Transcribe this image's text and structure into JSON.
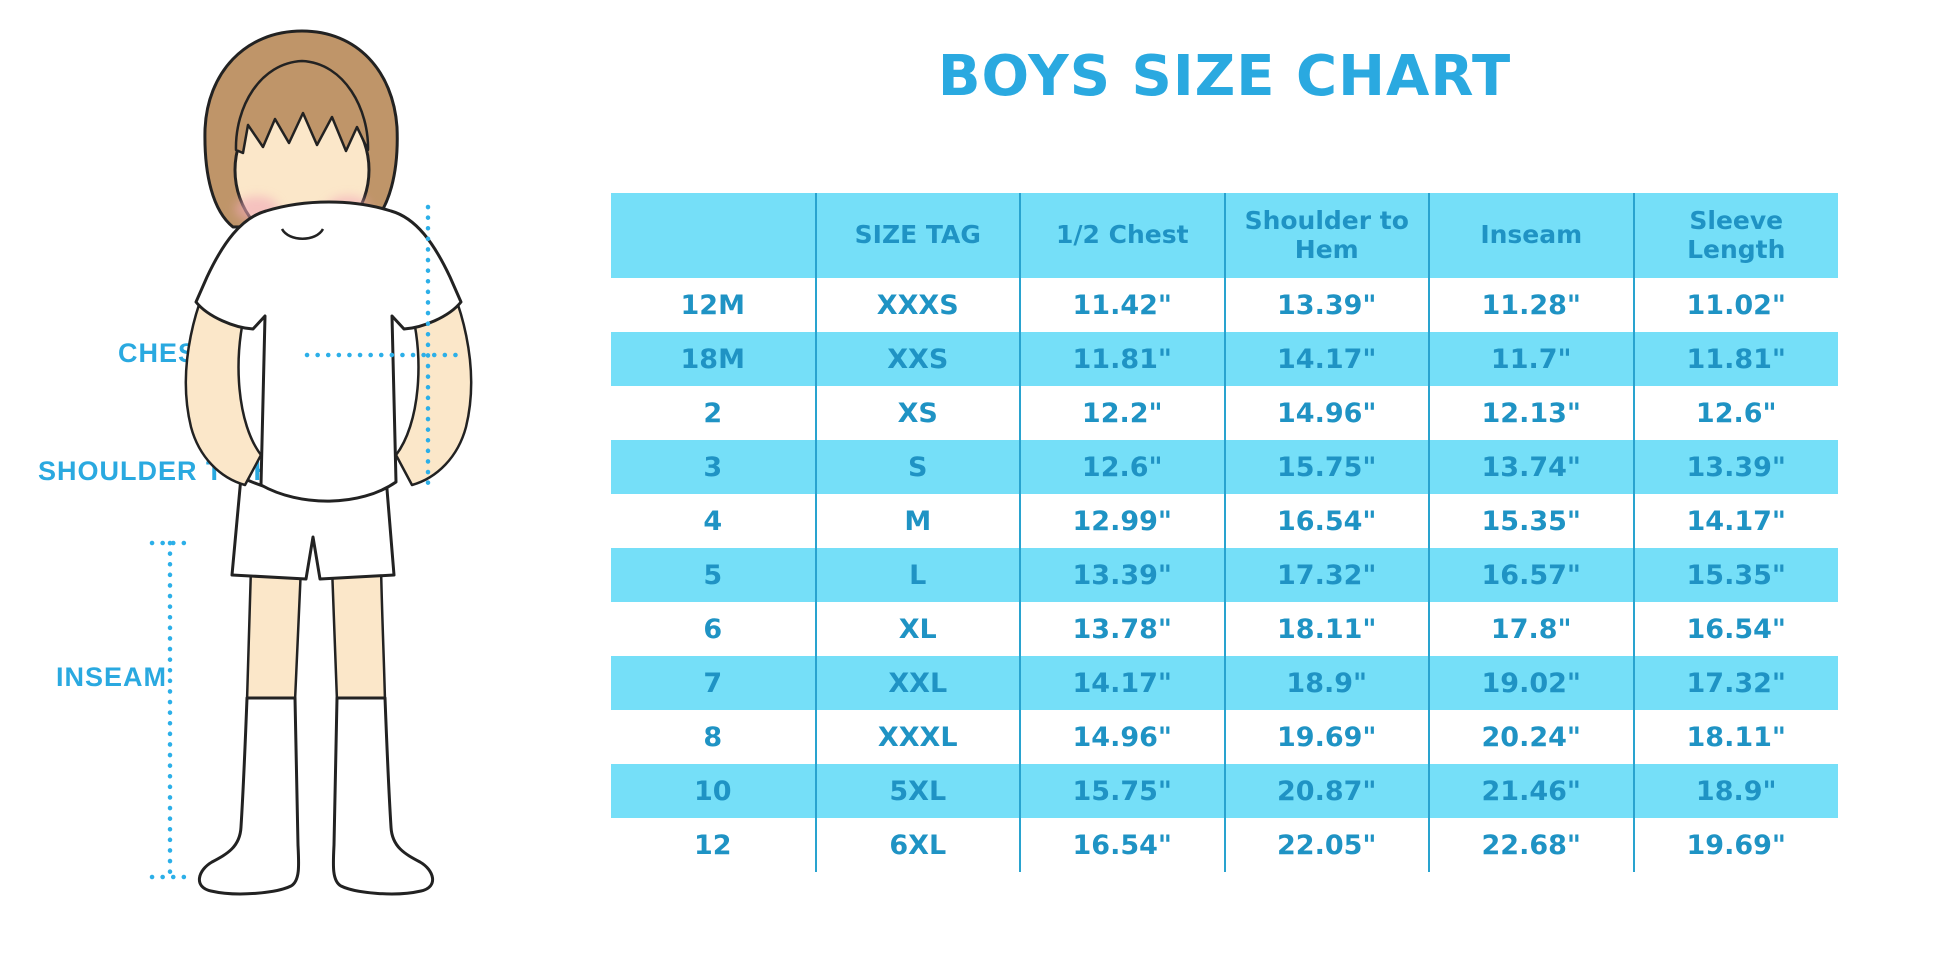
{
  "title": "BOYS SIZE CHART",
  "diagram": {
    "labels": {
      "chest": "CHEST",
      "shoulder_to_hem": "SHOULDER TO HEM",
      "inseam": "INSEAM"
    }
  },
  "chart_data": {
    "type": "table",
    "title": "BOYS SIZE CHART",
    "columns": [
      "",
      "SIZE TAG",
      "1/2 Chest",
      "Shoulder to Hem",
      "Inseam",
      "Sleeve Length"
    ],
    "rows": [
      [
        "12M",
        "XXXS",
        "11.42\"",
        "13.39\"",
        "11.28\"",
        "11.02\""
      ],
      [
        "18M",
        "XXS",
        "11.81\"",
        "14.17\"",
        "11.7\"",
        "11.81\""
      ],
      [
        "2",
        "XS",
        "12.2\"",
        "14.96\"",
        "12.13\"",
        "12.6\""
      ],
      [
        "3",
        "S",
        "12.6\"",
        "15.75\"",
        "13.74\"",
        "13.39\""
      ],
      [
        "4",
        "M",
        "12.99\"",
        "16.54\"",
        "15.35\"",
        "14.17\""
      ],
      [
        "5",
        "L",
        "13.39\"",
        "17.32\"",
        "16.57\"",
        "15.35\""
      ],
      [
        "6",
        "XL",
        "13.78\"",
        "18.11\"",
        "17.8\"",
        "16.54\""
      ],
      [
        "7",
        "XXL",
        "14.17\"",
        "18.9\"",
        "19.02\"",
        "17.32\""
      ],
      [
        "8",
        "XXXL",
        "14.96\"",
        "19.69\"",
        "20.24\"",
        "18.11\""
      ],
      [
        "10",
        "5XL",
        "15.75\"",
        "20.87\"",
        "21.46\"",
        "18.9\""
      ],
      [
        "12",
        "6XL",
        "16.54\"",
        "22.05\"",
        "22.68\"",
        "19.69\""
      ]
    ],
    "layout": {
      "striped_rows": true,
      "header_row": true,
      "grid": "vertical-only"
    }
  },
  "colors": {
    "accent": "#2aa9e0",
    "accent_bright": "#2cafe8",
    "table_text": "#1f93c4",
    "row_fill": "#75dff8",
    "line": "#29a3cf",
    "skin": "#fbe7c9",
    "hair": "#bf9569",
    "blush": "#f2a9b8"
  }
}
